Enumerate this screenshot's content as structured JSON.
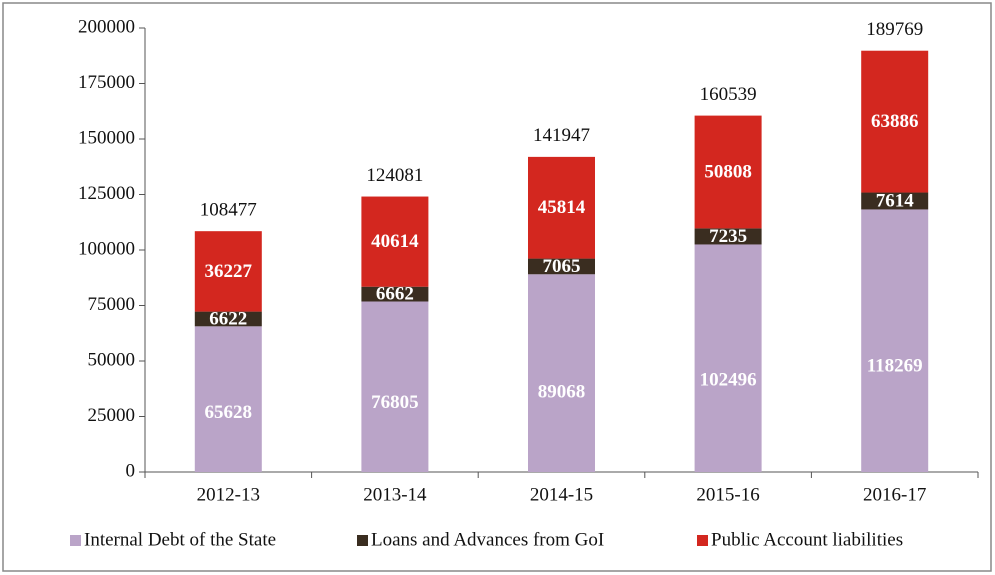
{
  "chart_data": {
    "type": "stacked_bar",
    "categories": [
      "2012-13",
      "2013-14",
      "2014-15",
      "2015-16",
      "2016-17"
    ],
    "series": [
      {
        "name": "Internal Debt of the State",
        "color": "#baa4c8",
        "values": [
          65628,
          76805,
          89068,
          102496,
          118269
        ]
      },
      {
        "name": "Loans and Advances from GoI",
        "color": "#3a2d20",
        "values": [
          6622,
          6662,
          7065,
          7235,
          7614
        ]
      },
      {
        "name": "Public Account liabilities",
        "color": "#d3271f",
        "values": [
          36227,
          40614,
          45814,
          50808,
          63886
        ]
      }
    ],
    "totals": [
      108477,
      124081,
      141947,
      160539,
      189769
    ],
    "ylim": [
      0,
      200000
    ],
    "yticks": [
      0,
      25000,
      50000,
      75000,
      100000,
      125000,
      150000,
      175000,
      200000
    ],
    "legend": "bottom"
  }
}
